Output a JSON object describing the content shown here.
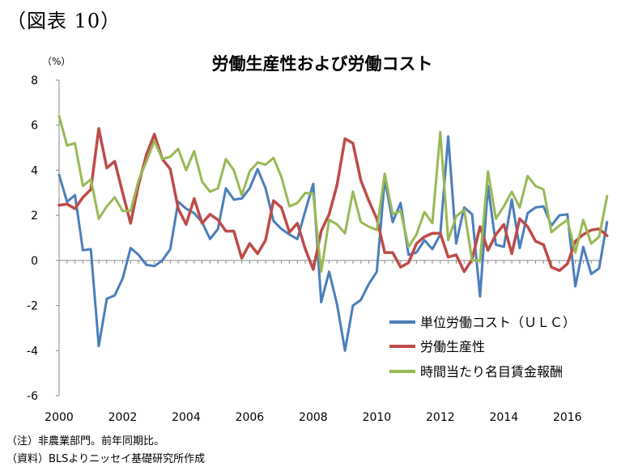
{
  "figure_label": "（図表 10）",
  "notes": {
    "note1": "（注）非農業部門。前年同期比。",
    "note2": "（資料）BLSよりニッセイ基礎研究所作成"
  },
  "chart_data": {
    "type": "line",
    "title": "労働生産性および労働コスト",
    "ylabel": "（%）",
    "xlabel": "",
    "xlim": [
      2000,
      2017
    ],
    "ylim": [
      -6,
      8
    ],
    "yticks": [
      -6,
      -4,
      -2,
      0,
      2,
      4,
      6,
      8
    ],
    "xticks": [
      2000,
      2002,
      2004,
      2006,
      2008,
      2010,
      2012,
      2014,
      2016
    ],
    "grid": false,
    "legend_position": "bottom-right",
    "x_start": "2000 Q1",
    "frequency": "quarterly",
    "series": [
      {
        "name": "単位労働コスト（ＵＬＣ）",
        "color": "#4a7ebb",
        "values": [
          3.8,
          2.6,
          2.9,
          0.45,
          0.5,
          -3.8,
          -1.7,
          -1.55,
          -0.8,
          0.55,
          0.25,
          -0.2,
          -0.25,
          0.0,
          0.5,
          2.6,
          2.3,
          2.1,
          1.7,
          0.95,
          1.4,
          3.2,
          2.7,
          2.75,
          3.2,
          4.05,
          3.2,
          1.75,
          1.4,
          1.15,
          0.95,
          2.2,
          3.4,
          -1.85,
          -0.5,
          -1.95,
          -4.0,
          -2.0,
          -1.75,
          -1.05,
          -0.5,
          3.6,
          1.7,
          2.55,
          0.25,
          0.35,
          0.9,
          0.5,
          1.15,
          5.5,
          0.75,
          2.35,
          2.05,
          -1.6,
          3.3,
          0.7,
          0.6,
          2.7,
          0.55,
          2.1,
          2.35,
          2.4,
          1.55,
          2.0,
          2.05,
          -1.15,
          0.6,
          -0.6,
          -0.35,
          1.7
        ]
      },
      {
        "name": "労働生産性",
        "color": "#be4b48",
        "values": [
          2.45,
          2.5,
          2.3,
          2.8,
          3.15,
          5.85,
          4.1,
          4.4,
          3.0,
          1.65,
          3.35,
          4.7,
          5.6,
          4.5,
          4.05,
          2.3,
          1.6,
          2.75,
          1.65,
          2.05,
          1.8,
          1.3,
          1.3,
          0.1,
          0.75,
          0.3,
          0.9,
          2.65,
          2.35,
          1.25,
          1.65,
          0.5,
          -0.4,
          1.3,
          2.05,
          3.35,
          5.4,
          5.2,
          3.55,
          2.65,
          1.85,
          0.35,
          0.35,
          -0.3,
          -0.1,
          0.75,
          1.05,
          1.2,
          1.2,
          0.15,
          0.25,
          -0.5,
          0.05,
          1.5,
          0.45,
          1.15,
          1.6,
          0.3,
          1.85,
          1.5,
          0.85,
          0.7,
          -0.3,
          -0.45,
          -0.15,
          0.85,
          1.15,
          1.35,
          1.4,
          1.1
        ]
      },
      {
        "name": "時間当たり名目賃金報酬",
        "color": "#98b954",
        "values": [
          6.4,
          5.1,
          5.2,
          3.3,
          3.6,
          1.85,
          2.4,
          2.8,
          2.2,
          2.2,
          3.55,
          4.4,
          5.3,
          4.5,
          4.6,
          4.95,
          4.0,
          4.85,
          3.5,
          3.05,
          3.2,
          4.5,
          4.0,
          2.9,
          3.95,
          4.35,
          4.25,
          4.55,
          3.7,
          2.4,
          2.55,
          3.0,
          2.95,
          -0.5,
          1.8,
          1.6,
          1.2,
          3.05,
          1.7,
          1.5,
          1.35,
          3.85,
          2.05,
          2.2,
          0.6,
          1.15,
          2.15,
          1.65,
          5.7,
          0.9,
          1.95,
          2.25,
          0.0,
          0.0,
          3.95,
          1.85,
          2.4,
          3.05,
          2.35,
          3.75,
          3.3,
          3.15,
          1.25,
          1.55,
          1.8,
          0.35,
          1.8,
          0.75,
          1.05,
          2.85
        ]
      }
    ]
  }
}
